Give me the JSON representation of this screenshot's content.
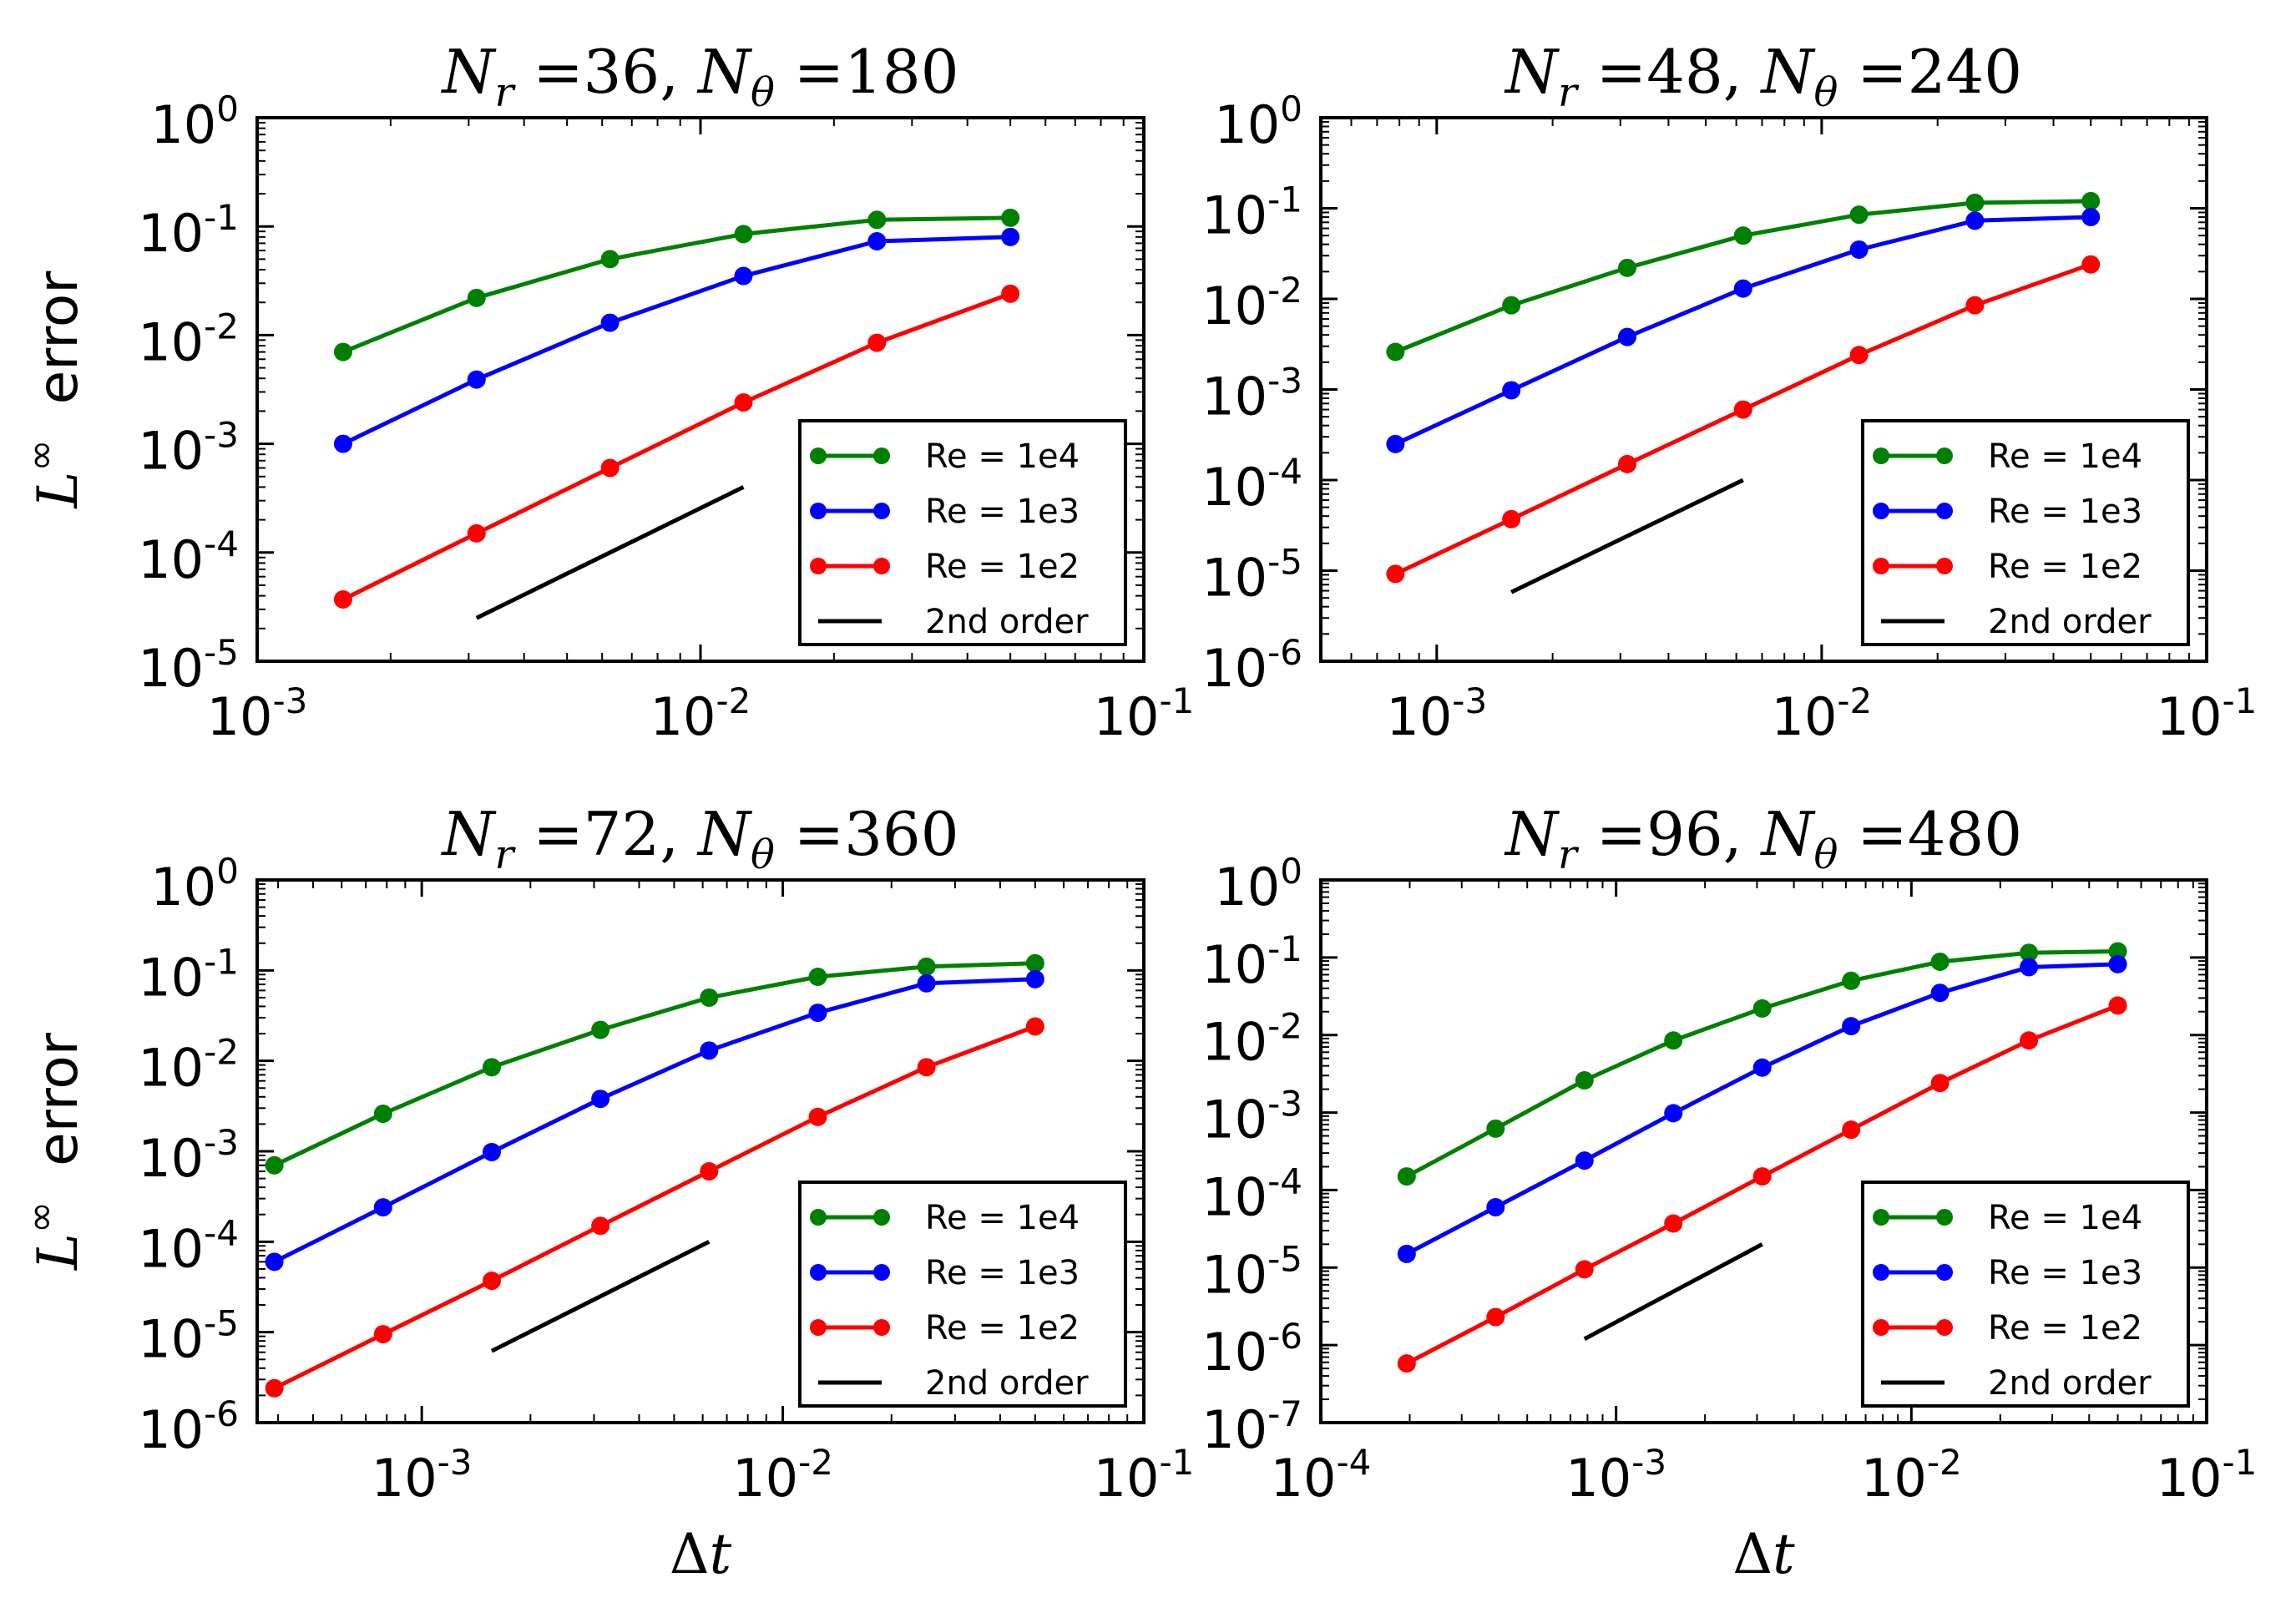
{
  "colors": {
    "re_1e4": "#008000",
    "re_1e3": "#0000ff",
    "re_1e2": "#ff0000",
    "second_order": "#000000"
  },
  "chart_data": [
    {
      "type": "line",
      "title": "N_r =36, N_θ =180",
      "title_parts": {
        "nr_label": "N",
        "nr_sub": "r",
        "nr_value": "=36,",
        "nt_label": "N",
        "nt_sub": "θ",
        "nt_value": "=180"
      },
      "xlabel": "",
      "ylabel": "L^∞ error",
      "xscale": "log",
      "yscale": "log",
      "xlim": [
        0.001,
        0.1
      ],
      "ylim": [
        1e-05,
        1
      ],
      "x_ticks": [
        "10^-3",
        "10^-2",
        "10^-1"
      ],
      "y_ticks": [
        "10^-5",
        "10^-4",
        "10^-3",
        "10^-2",
        "10^-1",
        "10^0"
      ],
      "legend_position": "lower-right",
      "series": [
        {
          "name": "Re = 1e4",
          "color": "#008000",
          "x": [
            0.0015625,
            0.003125,
            0.00625,
            0.0125,
            0.025,
            0.05
          ],
          "y": [
            0.007,
            0.022,
            0.05,
            0.085,
            0.115,
            0.12
          ]
        },
        {
          "name": "Re = 1e3",
          "color": "#0000ff",
          "x": [
            0.0015625,
            0.003125,
            0.00625,
            0.0125,
            0.025,
            0.05
          ],
          "y": [
            0.001,
            0.0039,
            0.013,
            0.035,
            0.073,
            0.08
          ]
        },
        {
          "name": "Re = 1e2",
          "color": "#ff0000",
          "x": [
            0.0015625,
            0.003125,
            0.00625,
            0.0125,
            0.025,
            0.05
          ],
          "y": [
            3.7e-05,
            0.00015,
            0.0006,
            0.0024,
            0.0085,
            0.024
          ]
        },
        {
          "name": "2nd order",
          "color": "#000000",
          "markers": false,
          "x": [
            0.003125,
            0.0125
          ],
          "y": [
            2.5e-05,
            0.0004
          ]
        }
      ]
    },
    {
      "type": "line",
      "title": "N_r =48, N_θ =240",
      "title_parts": {
        "nr_label": "N",
        "nr_sub": "r",
        "nr_value": "=48,",
        "nt_label": "N",
        "nt_sub": "θ",
        "nt_value": "=240"
      },
      "xlabel": "",
      "ylabel": "",
      "xscale": "log",
      "yscale": "log",
      "xlim": [
        0.0005,
        0.1
      ],
      "ylim": [
        1e-06,
        1
      ],
      "x_ticks": [
        "10^-3",
        "10^-2",
        "10^-1"
      ],
      "y_ticks": [
        "10^-6",
        "10^-5",
        "10^-4",
        "10^-3",
        "10^-2",
        "10^-1",
        "10^0"
      ],
      "legend_position": "lower-right",
      "series": [
        {
          "name": "Re = 1e4",
          "color": "#008000",
          "x": [
            0.00078125,
            0.0015625,
            0.003125,
            0.00625,
            0.0125,
            0.025,
            0.05
          ],
          "y": [
            0.0026,
            0.0085,
            0.022,
            0.05,
            0.085,
            0.115,
            0.12
          ]
        },
        {
          "name": "Re = 1e3",
          "color": "#0000ff",
          "x": [
            0.00078125,
            0.0015625,
            0.003125,
            0.00625,
            0.0125,
            0.025,
            0.05
          ],
          "y": [
            0.00025,
            0.00098,
            0.0038,
            0.013,
            0.035,
            0.073,
            0.08
          ]
        },
        {
          "name": "Re = 1e2",
          "color": "#ff0000",
          "x": [
            0.00078125,
            0.0015625,
            0.003125,
            0.00625,
            0.0125,
            0.025,
            0.05
          ],
          "y": [
            9.2e-06,
            3.7e-05,
            0.00015,
            0.0006,
            0.0024,
            0.0085,
            0.024
          ]
        },
        {
          "name": "2nd order",
          "color": "#000000",
          "markers": false,
          "x": [
            0.0015625,
            0.00625
          ],
          "y": [
            5.8e-06,
            0.0001
          ]
        }
      ]
    },
    {
      "type": "line",
      "title": "N_r =72, N_θ =360",
      "title_parts": {
        "nr_label": "N",
        "nr_sub": "r",
        "nr_value": "=72,",
        "nt_label": "N",
        "nt_sub": "θ",
        "nt_value": "=360"
      },
      "xlabel": "Δt",
      "ylabel": "L^∞ error",
      "xscale": "log",
      "yscale": "log",
      "xlim": [
        0.00035,
        0.1
      ],
      "ylim": [
        1e-06,
        1
      ],
      "x_ticks": [
        "10^-3",
        "10^-2",
        "10^-1"
      ],
      "y_ticks": [
        "10^-6",
        "10^-5",
        "10^-4",
        "10^-3",
        "10^-2",
        "10^-1",
        "10^0"
      ],
      "legend_position": "lower-right",
      "series": [
        {
          "name": "Re = 1e4",
          "color": "#008000",
          "x": [
            0.000390625,
            0.00078125,
            0.0015625,
            0.003125,
            0.00625,
            0.0125,
            0.025,
            0.05
          ],
          "y": [
            0.0007,
            0.0026,
            0.0085,
            0.022,
            0.05,
            0.085,
            0.11,
            0.12
          ]
        },
        {
          "name": "Re = 1e3",
          "color": "#0000ff",
          "x": [
            0.000390625,
            0.00078125,
            0.0015625,
            0.003125,
            0.00625,
            0.0125,
            0.025,
            0.05
          ],
          "y": [
            6e-05,
            0.00024,
            0.00098,
            0.0038,
            0.013,
            0.034,
            0.072,
            0.08
          ]
        },
        {
          "name": "Re = 1e2",
          "color": "#ff0000",
          "x": [
            0.000390625,
            0.00078125,
            0.0015625,
            0.003125,
            0.00625,
            0.0125,
            0.025,
            0.05
          ],
          "y": [
            2.4e-06,
            9.5e-06,
            3.7e-05,
            0.00015,
            0.0006,
            0.0024,
            0.0085,
            0.024
          ]
        },
        {
          "name": "2nd order",
          "color": "#000000",
          "markers": false,
          "x": [
            0.0015625,
            0.00625
          ],
          "y": [
            6.2e-06,
            0.0001
          ]
        }
      ]
    },
    {
      "type": "line",
      "title": "N_r =96, N_θ =480",
      "title_parts": {
        "nr_label": "N",
        "nr_sub": "r",
        "nr_value": "=96,",
        "nt_label": "N",
        "nt_sub": "θ",
        "nt_value": "=480"
      },
      "xlabel": "Δt",
      "ylabel": "",
      "xscale": "log",
      "yscale": "log",
      "xlim": [
        0.0001,
        0.1
      ],
      "ylim": [
        1e-07,
        1
      ],
      "x_ticks": [
        "10^-4",
        "10^-3",
        "10^-2",
        "10^-1"
      ],
      "y_ticks": [
        "10^-7",
        "10^-6",
        "10^-5",
        "10^-4",
        "10^-3",
        "10^-2",
        "10^-1",
        "10^0"
      ],
      "legend_position": "lower-right",
      "series": [
        {
          "name": "Re = 1e4",
          "color": "#008000",
          "x": [
            0.0001953125,
            0.000390625,
            0.00078125,
            0.0015625,
            0.003125,
            0.00625,
            0.0125,
            0.025,
            0.05
          ],
          "y": [
            0.00015,
            0.00062,
            0.0026,
            0.0085,
            0.022,
            0.05,
            0.088,
            0.115,
            0.12
          ]
        },
        {
          "name": "Re = 1e3",
          "color": "#0000ff",
          "x": [
            0.0001953125,
            0.000390625,
            0.00078125,
            0.0015625,
            0.003125,
            0.00625,
            0.0125,
            0.025,
            0.05
          ],
          "y": [
            1.5e-05,
            6e-05,
            0.00024,
            0.00098,
            0.0038,
            0.013,
            0.035,
            0.075,
            0.082
          ]
        },
        {
          "name": "Re = 1e2",
          "color": "#ff0000",
          "x": [
            0.0001953125,
            0.000390625,
            0.00078125,
            0.0015625,
            0.003125,
            0.00625,
            0.0125,
            0.025,
            0.05
          ],
          "y": [
            5.8e-07,
            2.3e-06,
            9.5e-06,
            3.7e-05,
            0.00015,
            0.0006,
            0.0024,
            0.0085,
            0.024
          ]
        },
        {
          "name": "2nd order",
          "color": "#000000",
          "markers": false,
          "x": [
            0.00078125,
            0.003125
          ],
          "y": [
            1.2e-06,
            2e-05
          ]
        }
      ]
    }
  ]
}
